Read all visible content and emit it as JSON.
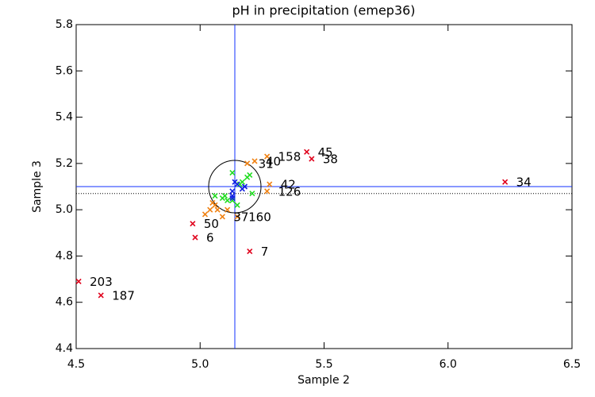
{
  "chart_data": {
    "type": "scatter",
    "title": "pH in precipitation (emep36)",
    "x_label": "Sample 2",
    "y_label": "Sample 3",
    "xlim": [
      4.5,
      6.5
    ],
    "ylim": [
      4.4,
      5.8
    ],
    "xticks": [
      4.5,
      {
        "value": 5,
        "label": "5.0"
      },
      5.5,
      {
        "value": 6,
        "label": "6.0"
      },
      6.5
    ],
    "yticks": [
      4.4,
      4.6,
      4.8,
      {
        "value": 5,
        "label": "5.0"
      },
      5.2,
      5.4,
      5.6,
      5.8
    ],
    "reference_x": 5.14,
    "reference_y": 5.1,
    "dotted_y": 5.07,
    "series": [
      {
        "color": "#e0001b",
        "x": [
          4.51,
          4.6,
          4.97,
          4.98,
          5.2,
          5.43,
          5.45,
          6.23
        ],
        "y": [
          4.69,
          4.63,
          4.94,
          4.88,
          4.82,
          5.25,
          5.22,
          5.12
        ],
        "labels": [
          "203",
          "187",
          "50",
          "6",
          "7",
          "45",
          "38",
          "34"
        ]
      },
      {
        "color": "#f08010",
        "x": [
          5.27,
          5.19,
          5.22,
          5.28,
          5.27,
          5.15,
          5.09,
          5.06,
          5.07,
          5.02,
          5.04,
          5.05,
          5.11
        ],
        "y": [
          5.23,
          5.2,
          5.21,
          5.11,
          5.08,
          4.97,
          4.97,
          5.02,
          5.0,
          4.98,
          5.0,
          5.03,
          5.0
        ],
        "labels": [
          "158",
          "31",
          "40",
          "42",
          "126",
          "160",
          "37",
          null,
          null,
          null,
          null,
          null,
          null
        ]
      },
      {
        "color": "#22dd22",
        "x": [
          5.13,
          5.16,
          5.19,
          5.2,
          5.21,
          5.06,
          5.09,
          5.11,
          5.13,
          5.15,
          5.17,
          5.1
        ],
        "y": [
          5.16,
          5.11,
          5.14,
          5.15,
          5.07,
          5.06,
          5.05,
          5.04,
          5.04,
          5.02,
          5.12,
          5.06
        ]
      },
      {
        "color": "#1020e0",
        "x": [
          5.14,
          5.15,
          5.13,
          5.13,
          5.17,
          5.18,
          5.13
        ],
        "y": [
          5.12,
          5.11,
          5.06,
          5.08,
          5.09,
          5.1,
          5.05
        ]
      }
    ]
  }
}
